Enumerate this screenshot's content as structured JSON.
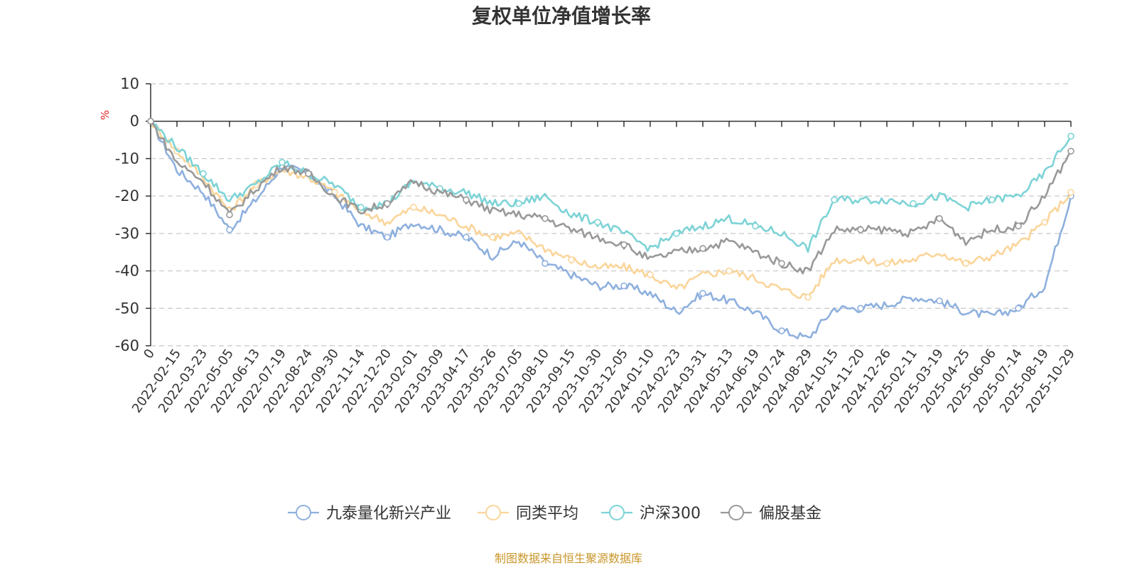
{
  "chart_data": {
    "type": "line",
    "title": "复权单位净值增长率",
    "ylabel": "%",
    "ylim": [
      -60,
      10
    ],
    "yticks": [
      10,
      0,
      -10,
      -20,
      -30,
      -40,
      -50,
      -60
    ],
    "grid": true,
    "legend_position": "bottom-center",
    "source": "制图数据来自恒生聚源数据库",
    "x_tick_labels": [
      "0",
      "2022-02-15",
      "2022-03-23",
      "2022-05-05",
      "2022-06-13",
      "2022-07-19",
      "2022-08-24",
      "2022-09-30",
      "2022-11-14",
      "2022-12-20",
      "2023-02-01",
      "2023-03-09",
      "2023-04-17",
      "2023-05-26",
      "2023-07-05",
      "2023-08-10",
      "2023-09-15",
      "2023-10-30",
      "2023-12-05",
      "2024-01-10",
      "2024-02-23",
      "2024-03-31",
      "2024-05-13",
      "2024-06-19",
      "2024-07-24",
      "2024-08-29",
      "2024-10-15",
      "2024-11-20",
      "2024-12-26",
      "2025-02-11",
      "2025-03-19",
      "2025-04-25",
      "2025-06-06",
      "2025-07-14",
      "2025-08-19",
      "2025-10-29"
    ],
    "series": [
      {
        "name": "九泰量化新兴产业",
        "color": "#8eb0de",
        "values": [
          0,
          -13,
          -19,
          -29,
          -21,
          -12,
          -14,
          -20,
          -28,
          -31,
          -27,
          -29,
          -31,
          -36,
          -32,
          -38,
          -41,
          -44,
          -44,
          -46,
          -51,
          -46,
          -48,
          -51,
          -56,
          -58,
          -50,
          -50,
          -49,
          -47,
          -48,
          -51,
          -52,
          -50,
          -44,
          -20
        ]
      },
      {
        "name": "同类平均",
        "color": "#fad59a",
        "values": [
          0,
          -8,
          -15,
          -24,
          -17,
          -13,
          -15,
          -19,
          -24,
          -27,
          -23,
          -25,
          -28,
          -31,
          -30,
          -34,
          -37,
          -39,
          -39,
          -41,
          -45,
          -41,
          -40,
          -42,
          -45,
          -47,
          -37,
          -37,
          -38,
          -37,
          -35,
          -38,
          -36,
          -33,
          -27,
          -19
        ]
      },
      {
        "name": "沪深300",
        "color": "#7dd3d6",
        "values": [
          0,
          -7,
          -14,
          -21,
          -17,
          -11,
          -14,
          -17,
          -23,
          -22,
          -16,
          -18,
          -19,
          -22,
          -22,
          -20,
          -25,
          -27,
          -30,
          -34,
          -30,
          -28,
          -26,
          -28,
          -30,
          -34,
          -21,
          -21,
          -21,
          -22,
          -20,
          -23,
          -21,
          -20,
          -14,
          -4
        ]
      },
      {
        "name": "偏股基金",
        "color": "#999999",
        "values": [
          0,
          -11,
          -16,
          -25,
          -18,
          -12,
          -14,
          -20,
          -24,
          -22,
          -16,
          -19,
          -21,
          -24,
          -25,
          -26,
          -29,
          -31,
          -33,
          -37,
          -35,
          -34,
          -32,
          -35,
          -38,
          -40,
          -29,
          -29,
          -29,
          -30,
          -26,
          -32,
          -29,
          -28,
          -20,
          -8
        ]
      }
    ]
  }
}
